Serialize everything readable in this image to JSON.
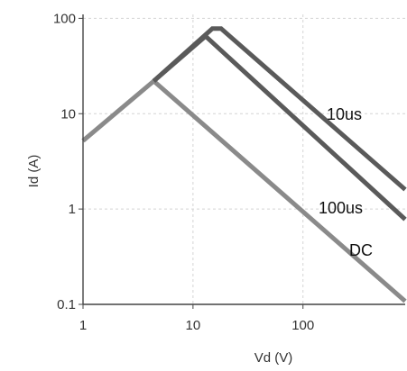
{
  "chart_data": {
    "type": "line",
    "xscale": "log",
    "yscale": "log",
    "xlim": [
      1,
      850
    ],
    "ylim": [
      0.1,
      110
    ],
    "x_ticks": [
      1,
      10,
      100
    ],
    "x_tick_labels": [
      "1",
      "10",
      "100"
    ],
    "y_ticks": [
      0.1,
      1,
      10,
      100
    ],
    "y_tick_labels": [
      "0.1",
      "1",
      "10",
      "100"
    ],
    "xlabel": "Vd (V)",
    "ylabel": "Id (A)",
    "grid": true,
    "series": [
      {
        "name": "10us",
        "color": "#5a5a5a",
        "x": [
          4.4,
          15,
          18,
          850
        ],
        "y": [
          22,
          78,
          78,
          1.6
        ]
      },
      {
        "name": "100us",
        "color": "#5a5a5a",
        "x": [
          4.4,
          13,
          850
        ],
        "y": [
          22,
          65,
          0.78
        ]
      },
      {
        "name": "DC",
        "color": "#8a8a8a",
        "x": [
          1,
          4.4,
          850
        ],
        "y": [
          5.2,
          22,
          0.108
        ]
      }
    ]
  }
}
